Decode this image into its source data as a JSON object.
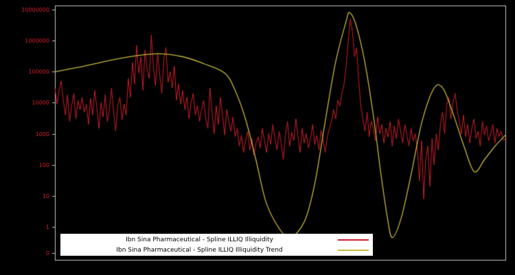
{
  "colors": {
    "background": "#000000",
    "frame": "#c8c8c8",
    "series": "#cf1f2d",
    "trend": "#c9b93a",
    "legend_bg": "#ffffff",
    "legend_text": "#000000",
    "tick_text": "#cf1f2d"
  },
  "legend": {
    "items": [
      {
        "label": "Ibn Sina Pharmaceutical - Spline ILLIQ Illiquidity",
        "color_key": "series"
      },
      {
        "label": "Ibn Sina Pharmaceutical - Spline ILLIQ Illiquidity Trend",
        "color_key": "trend"
      }
    ]
  },
  "chart_data": {
    "type": "line",
    "title": "",
    "xlabel": "",
    "ylabel": "",
    "yscale": "log",
    "ylim": [
      0,
      10000000
    ],
    "yticks": [
      "10000000",
      "1000000",
      "100000",
      "10000",
      "1000",
      "100",
      "10",
      "1",
      "0"
    ],
    "grid": false,
    "legend_position": "bottom-center",
    "series": [
      {
        "name": "Ibn Sina Pharmaceutical - Spline ILLIQ Illiquidity",
        "color": "#cf1f2d",
        "values": [
          30000,
          9000,
          25000,
          50000,
          12000,
          4000,
          18000,
          2500,
          8000,
          20000,
          3000,
          12000,
          6000,
          15000,
          5000,
          9000,
          2000,
          14000,
          4000,
          25000,
          7000,
          1500,
          10000,
          3500,
          18000,
          2500,
          6000,
          30000,
          5000,
          1200,
          8000,
          15000,
          2800,
          9000,
          4000,
          60000,
          15000,
          200000,
          40000,
          700000,
          90000,
          300000,
          25000,
          500000,
          120000,
          60000,
          1500000,
          150000,
          35000,
          400000,
          80000,
          20000,
          250000,
          600000,
          45000,
          100000,
          30000,
          150000,
          12000,
          40000,
          9000,
          25000,
          6000,
          15000,
          3000,
          10000,
          20000,
          4000,
          8000,
          2500,
          6000,
          12000,
          3000,
          1500,
          30000,
          5000,
          1000,
          8000,
          2000,
          15000,
          4000,
          900,
          6000,
          2500,
          1200,
          3500,
          800,
          1500,
          400,
          900,
          250,
          600,
          1200,
          300,
          700,
          200,
          500,
          800,
          350,
          1500,
          600,
          250,
          1000,
          450,
          2000,
          700,
          300,
          1200,
          500,
          150,
          900,
          2500,
          400,
          1100,
          600,
          3000,
          800,
          250,
          1500,
          500,
          1000,
          350,
          700,
          2000,
          450,
          900,
          300,
          1300,
          600,
          250,
          800,
          1500,
          2500,
          6000,
          3000,
          12000,
          8000,
          20000,
          40000,
          150000,
          1000000,
          5000000,
          2000000,
          300000,
          600000,
          50000,
          8000,
          3000,
          1200,
          5000,
          800,
          2500,
          1500,
          600,
          3500,
          1000,
          2000,
          500,
          1500,
          800,
          2500,
          400,
          1800,
          700,
          3000,
          1200,
          500,
          2000,
          900,
          400,
          1500,
          600,
          1000,
          300,
          30,
          600,
          8,
          150,
          400,
          20,
          700,
          100,
          1000,
          300,
          2000,
          5000,
          1000,
          8000,
          15000,
          3000,
          10000,
          20000,
          6000,
          2500,
          1000,
          4000,
          800,
          2000,
          500,
          1500,
          3000,
          700,
          1200,
          400,
          2500,
          900,
          1800,
          600,
          1000,
          2000,
          500,
          1500,
          800,
          1200,
          600,
          700
        ]
      },
      {
        "name": "Ibn Sina Pharmaceutical - Spline ILLIQ Illiquidity Trend",
        "color": "#c9b93a",
        "t": [
          0,
          0.054,
          0.115,
          0.177,
          0.231,
          0.285,
          0.331,
          0.377,
          0.4,
          0.423,
          0.446,
          0.469,
          0.5,
          0.523,
          0.554,
          0.577,
          0.6,
          0.623,
          0.646,
          0.654,
          0.669,
          0.688,
          0.708,
          0.723,
          0.738,
          0.749,
          0.769,
          0.792,
          0.815,
          0.842,
          0.862,
          0.885,
          0.908,
          0.931,
          0.954,
          0.977,
          1.0
        ],
        "values": [
          100000,
          140000,
          220000,
          320000,
          380000,
          300000,
          180000,
          90000,
          25000,
          3000,
          150,
          6,
          0.8,
          0.45,
          1.5,
          25,
          2500,
          200000,
          4000000,
          8000000,
          3000000,
          200000,
          3000,
          60,
          2,
          0.45,
          2,
          60,
          2500,
          30000,
          28000,
          4000,
          400,
          60,
          150,
          400,
          900
        ]
      }
    ]
  }
}
